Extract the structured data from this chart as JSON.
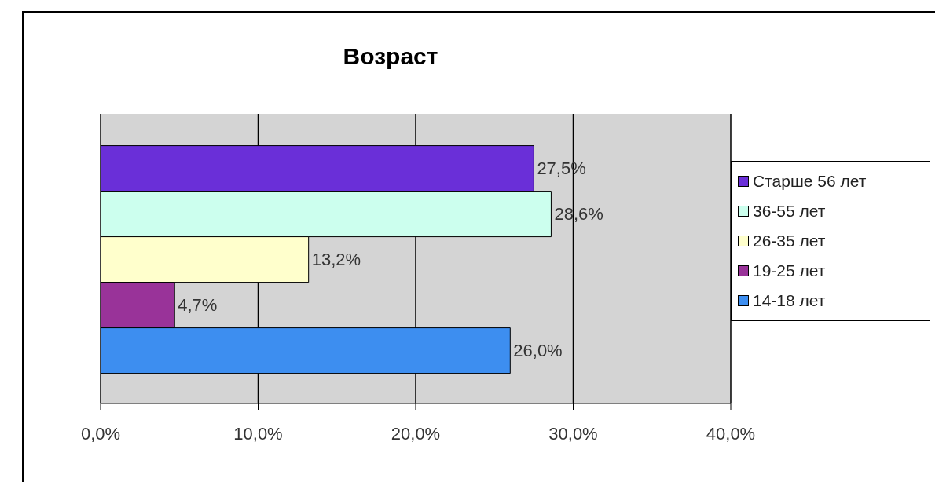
{
  "chart_data": {
    "type": "bar",
    "orientation": "horizontal",
    "title": "Возраст",
    "categories": [
      null
    ],
    "series": [
      {
        "name": "Старше 56 лет",
        "color": "#6a2fd8",
        "values": [
          27.5
        ],
        "value_labels": [
          "27,5%"
        ]
      },
      {
        "name": "36-55 лет",
        "color": "#ccffee",
        "values": [
          28.6
        ],
        "value_labels": [
          "28,6%"
        ]
      },
      {
        "name": "26-35 лет",
        "color": "#ffffcc",
        "values": [
          13.2
        ],
        "value_labels": [
          "13,2%"
        ]
      },
      {
        "name": "19-25 лет",
        "color": "#993399",
        "values": [
          4.7
        ],
        "value_labels": [
          "4,7%"
        ]
      },
      {
        "name": "14-18 лет",
        "color": "#3d8ef0",
        "values": [
          26.0
        ],
        "value_labels": [
          "26,0%"
        ]
      }
    ],
    "xlim": [
      0,
      40
    ],
    "xticks": [
      {
        "value": 0,
        "label": "0,0%"
      },
      {
        "value": 10,
        "label": "10,0%"
      },
      {
        "value": 20,
        "label": "20,0%"
      },
      {
        "value": 30,
        "label": "30,0%"
      },
      {
        "value": 40,
        "label": "40,0%"
      }
    ],
    "grid": "x",
    "legend": "right"
  }
}
